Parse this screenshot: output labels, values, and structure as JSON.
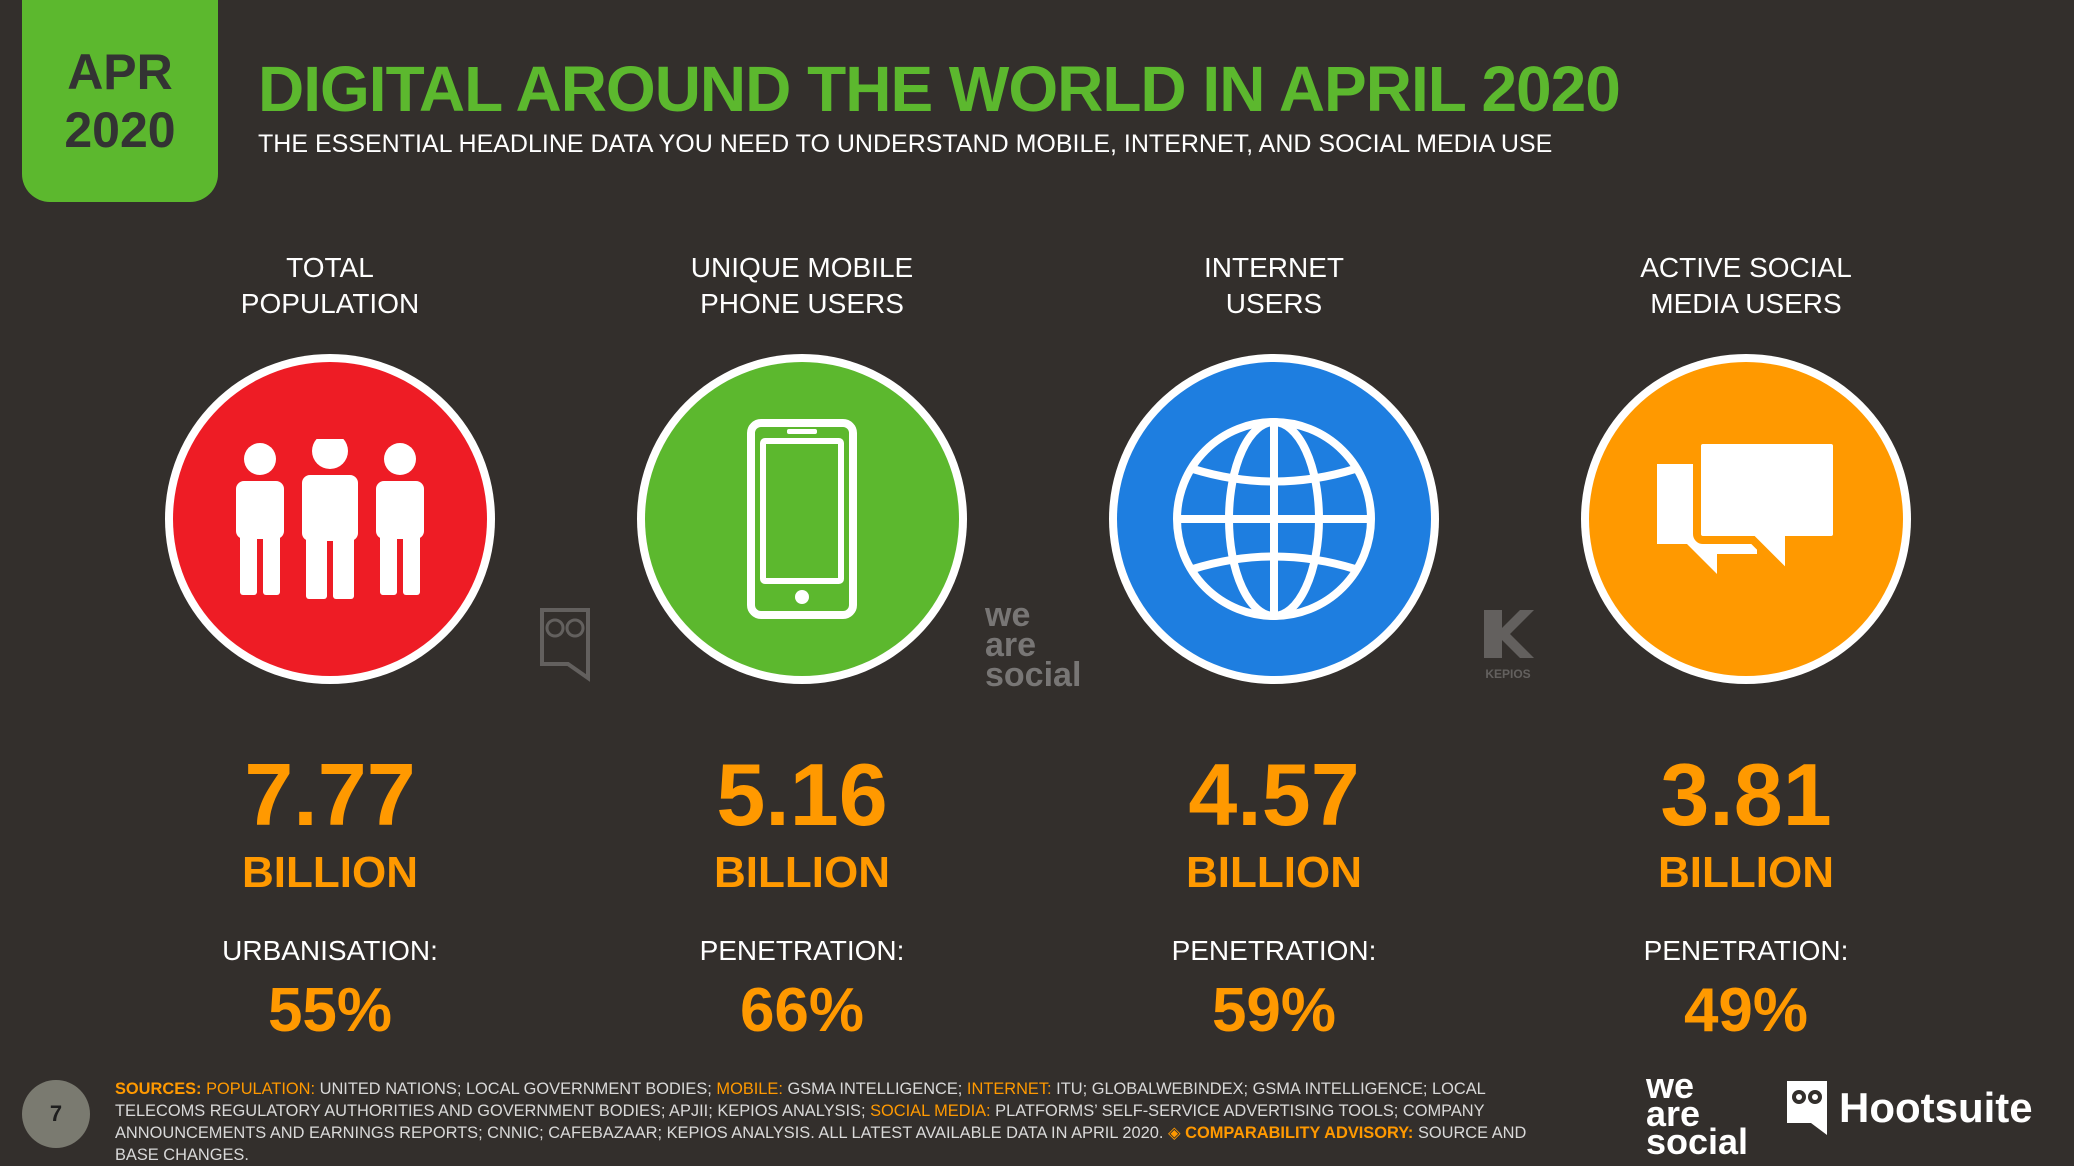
{
  "badge": {
    "line1": "APR",
    "line2": "2020"
  },
  "header": {
    "title": "DIGITAL AROUND THE WORLD IN APRIL 2020",
    "subtitle": "THE ESSENTIAL HEADLINE DATA YOU NEED TO UNDERSTAND MOBILE, INTERNET, AND SOCIAL MEDIA USE"
  },
  "columns": [
    {
      "label_line1": "TOTAL",
      "label_line2": "POPULATION",
      "icon": "people-icon",
      "color": "#ee1c25",
      "value": "7.77",
      "unit": "BILLION",
      "sub_label": "URBANISATION:",
      "sub_value": "55%"
    },
    {
      "label_line1": "UNIQUE MOBILE",
      "label_line2": "PHONE USERS",
      "icon": "mobile-phone-icon",
      "color": "#5cb82e",
      "value": "5.16",
      "unit": "BILLION",
      "sub_label": "PENETRATION:",
      "sub_value": "66%"
    },
    {
      "label_line1": "INTERNET",
      "label_line2": "USERS",
      "icon": "globe-icon",
      "color": "#1e7ee0",
      "value": "4.57",
      "unit": "BILLION",
      "sub_label": "PENETRATION:",
      "sub_value": "59%"
    },
    {
      "label_line1": "ACTIVE SOCIAL",
      "label_line2": "MEDIA USERS",
      "icon": "chat-bubbles-icon",
      "color": "#ff9900",
      "value": "3.81",
      "unit": "BILLION",
      "sub_label": "PENETRATION:",
      "sub_value": "49%"
    }
  ],
  "footer": {
    "page_number": "7",
    "sources_label": "SOURCES:",
    "population_label": "POPULATION:",
    "population_text": " UNITED NATIONS; LOCAL GOVERNMENT BODIES; ",
    "mobile_label": "MOBILE:",
    "mobile_text": " GSMA INTELLIGENCE; ",
    "internet_label": "INTERNET:",
    "internet_text": " ITU; GLOBALWEBINDEX; GSMA INTELLIGENCE; LOCAL TELECOMS REGULATORY AUTHORITIES AND GOVERNMENT BODIES; APJII; KEPIOS ANALYSIS; ",
    "social_label": "SOCIAL MEDIA:",
    "social_text": " PLATFORMS’ SELF-SERVICE ADVERTISING TOOLS; COMPANY ANNOUNCEMENTS AND EARNINGS REPORTS; CNNIC; CAFEBAZAAR; KEPIOS ANALYSIS. ALL LATEST AVAILABLE DATA IN APRIL 2020. ",
    "advisory_label": "◈ COMPARABILITY ADVISORY:",
    "advisory_text": " SOURCE AND BASE CHANGES."
  },
  "logos": {
    "we_are_social": [
      "we",
      "are",
      "social"
    ],
    "hootsuite": "Hootsuite",
    "kepios": "KEPIOS"
  }
}
